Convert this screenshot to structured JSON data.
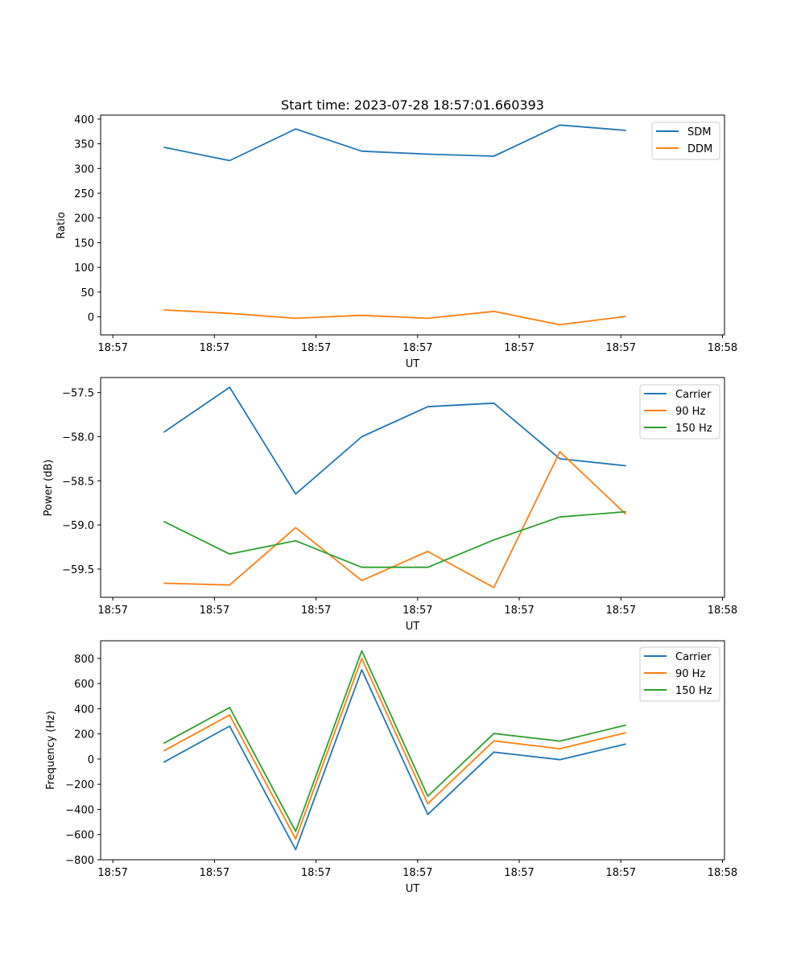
{
  "chart_data": [
    {
      "type": "line",
      "title": "Start time: 2023-07-28 18:57:01.660393",
      "xlabel": "UT",
      "ylabel": "Ratio",
      "xtick_labels": [
        "18:57",
        "18:57",
        "18:57",
        "18:57",
        "18:57",
        "18:57",
        "18:58"
      ],
      "x_index": [
        0.5,
        1.15,
        1.8,
        2.45,
        3.1,
        3.75,
        4.4,
        5.05
      ],
      "xlim": [
        -0.12,
        6.02
      ],
      "yticks": [
        0,
        50,
        100,
        150,
        200,
        250,
        300,
        350,
        400
      ],
      "ylim": [
        -36.5,
        408
      ],
      "legend": "top-right",
      "series": [
        {
          "name": "SDM",
          "color": "#1f77b4",
          "values": [
            343,
            316,
            380,
            335,
            329,
            325,
            388,
            377
          ]
        },
        {
          "name": "DDM",
          "color": "#ff7f0e",
          "values": [
            14,
            7,
            -3,
            3,
            -3,
            11,
            -16,
            1
          ]
        }
      ]
    },
    {
      "type": "line",
      "title": "",
      "xlabel": "UT",
      "ylabel": "Power (dB)",
      "xtick_labels": [
        "18:57",
        "18:57",
        "18:57",
        "18:57",
        "18:57",
        "18:57",
        "18:58"
      ],
      "x_index": [
        0.5,
        1.15,
        1.8,
        2.45,
        3.1,
        3.75,
        4.4,
        5.05
      ],
      "xlim": [
        -0.12,
        6.02
      ],
      "yticks": [
        -57.5,
        -58.0,
        -58.5,
        -59.0,
        -59.5
      ],
      "ytick_labels": [
        "−57.5",
        "−58.0",
        "−58.5",
        "−59.0",
        "−59.5"
      ],
      "ylim": [
        -59.82,
        -57.33
      ],
      "legend": "top-right",
      "series": [
        {
          "name": "Carrier",
          "color": "#1f77b4",
          "values": [
            -57.95,
            -57.44,
            -58.65,
            -58.0,
            -57.66,
            -57.62,
            -58.25,
            -58.33
          ]
        },
        {
          "name": "90 Hz",
          "color": "#ff7f0e",
          "values": [
            -59.66,
            -59.68,
            -59.03,
            -59.63,
            -59.3,
            -59.71,
            -58.17,
            -58.88
          ]
        },
        {
          "name": "150 Hz",
          "color": "#2ca02c",
          "values": [
            -58.96,
            -59.33,
            -59.18,
            -59.48,
            -59.48,
            -59.17,
            -58.91,
            -58.85
          ]
        }
      ]
    },
    {
      "type": "line",
      "title": "",
      "xlabel": "UT",
      "ylabel": "Frequency (Hz)",
      "xtick_labels": [
        "18:57",
        "18:57",
        "18:57",
        "18:57",
        "18:57",
        "18:57",
        "18:58"
      ],
      "x_index": [
        0.5,
        1.15,
        1.8,
        2.45,
        3.1,
        3.75,
        4.4,
        5.05
      ],
      "xlim": [
        -0.12,
        6.02
      ],
      "yticks": [
        -800,
        -600,
        -400,
        -200,
        0,
        200,
        400,
        600,
        800
      ],
      "ytick_labels": [
        "−800",
        "−600",
        "−400",
        "−200",
        "0",
        "200",
        "400",
        "600",
        "800"
      ],
      "ylim": [
        -800,
        940
      ],
      "legend": "top-right",
      "series": [
        {
          "name": "Carrier",
          "color": "#1f77b4",
          "values": [
            -25,
            262,
            -720,
            710,
            -440,
            55,
            -5,
            120
          ]
        },
        {
          "name": "90 Hz",
          "color": "#ff7f0e",
          "values": [
            65,
            350,
            -635,
            800,
            -355,
            145,
            82,
            210
          ]
        },
        {
          "name": "150 Hz",
          "color": "#2ca02c",
          "values": [
            125,
            410,
            -575,
            860,
            -295,
            203,
            143,
            270
          ]
        }
      ]
    }
  ]
}
